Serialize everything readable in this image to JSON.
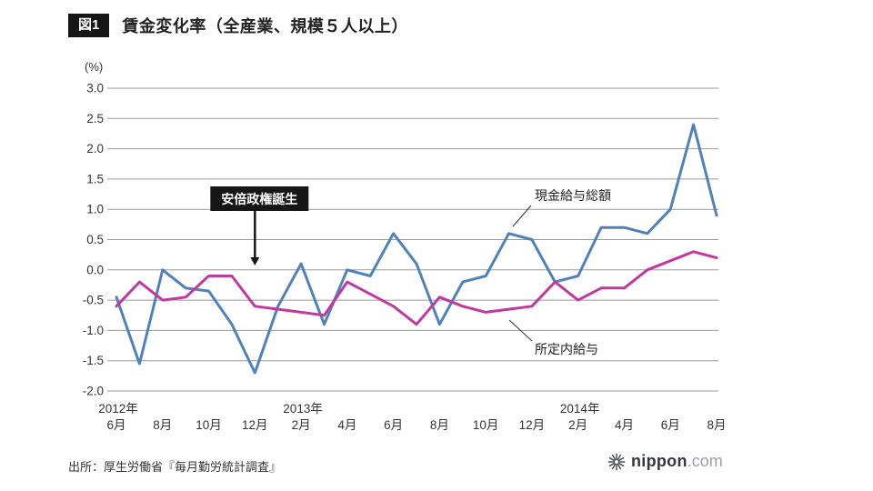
{
  "header": {
    "figure_label": "図1",
    "title": "賃金変化率（全産業、規模５人以上）"
  },
  "chart_data": {
    "type": "line",
    "unit_label": "(%)",
    "ylim": [
      -2.0,
      3.0
    ],
    "y_ticks": [
      3.0,
      2.5,
      2.0,
      1.5,
      1.0,
      0.5,
      0.0,
      -0.5,
      -1.0,
      -1.5,
      -2.0
    ],
    "grid": true,
    "categories": [
      "2012年6月",
      "2012年7月",
      "2012年8月",
      "2012年9月",
      "2012年10月",
      "2012年11月",
      "2012年12月",
      "2013年1月",
      "2013年2月",
      "2013年3月",
      "2013年4月",
      "2013年5月",
      "2013年6月",
      "2013年7月",
      "2013年8月",
      "2013年9月",
      "2013年10月",
      "2013年11月",
      "2013年12月",
      "2014年1月",
      "2014年2月",
      "2014年3月",
      "2014年4月",
      "2014年5月",
      "2014年6月",
      "2014年7月",
      "2014年8月"
    ],
    "x_ticks": [
      {
        "index": 0,
        "label": "6月"
      },
      {
        "index": 2,
        "label": "8月"
      },
      {
        "index": 4,
        "label": "10月"
      },
      {
        "index": 6,
        "label": "12月"
      },
      {
        "index": 8,
        "label": "2月"
      },
      {
        "index": 10,
        "label": "4月"
      },
      {
        "index": 12,
        "label": "6月"
      },
      {
        "index": 14,
        "label": "8月"
      },
      {
        "index": 16,
        "label": "10月"
      },
      {
        "index": 18,
        "label": "12月"
      },
      {
        "index": 20,
        "label": "2月"
      },
      {
        "index": 22,
        "label": "4月"
      },
      {
        "index": 24,
        "label": "6月"
      },
      {
        "index": 26,
        "label": "8月"
      }
    ],
    "year_ticks": [
      {
        "index": 0,
        "label": "2012年"
      },
      {
        "index": 8,
        "label": "2013年"
      },
      {
        "index": 20,
        "label": "2014年"
      }
    ],
    "series": [
      {
        "name": "現金給与総額",
        "color": "#4f81bd",
        "values": [
          -0.45,
          -1.55,
          0.0,
          -0.3,
          -0.35,
          -0.9,
          -1.7,
          -0.6,
          0.1,
          -0.9,
          0.0,
          -0.1,
          0.6,
          0.1,
          -0.9,
          -0.2,
          -0.1,
          0.6,
          0.5,
          -0.2,
          -0.1,
          0.7,
          0.7,
          0.6,
          1.0,
          2.4,
          0.9
        ]
      },
      {
        "name": "所定内給与",
        "color": "#c0399f",
        "values": [
          -0.6,
          -0.2,
          -0.5,
          -0.45,
          -0.1,
          -0.1,
          -0.6,
          -0.65,
          -0.7,
          -0.75,
          -0.2,
          -0.4,
          -0.6,
          -0.9,
          -0.45,
          -0.6,
          -0.7,
          -0.65,
          -0.6,
          -0.2,
          -0.5,
          -0.3,
          -0.3,
          0.0,
          0.15,
          0.3,
          0.2
        ]
      }
    ],
    "annotation": {
      "label": "安倍政権誕生",
      "x_index": 6
    }
  },
  "source": "出所：厚生労働省『毎月勤労統計調査』",
  "logo": {
    "name": "nippon",
    "tld": ".com"
  }
}
